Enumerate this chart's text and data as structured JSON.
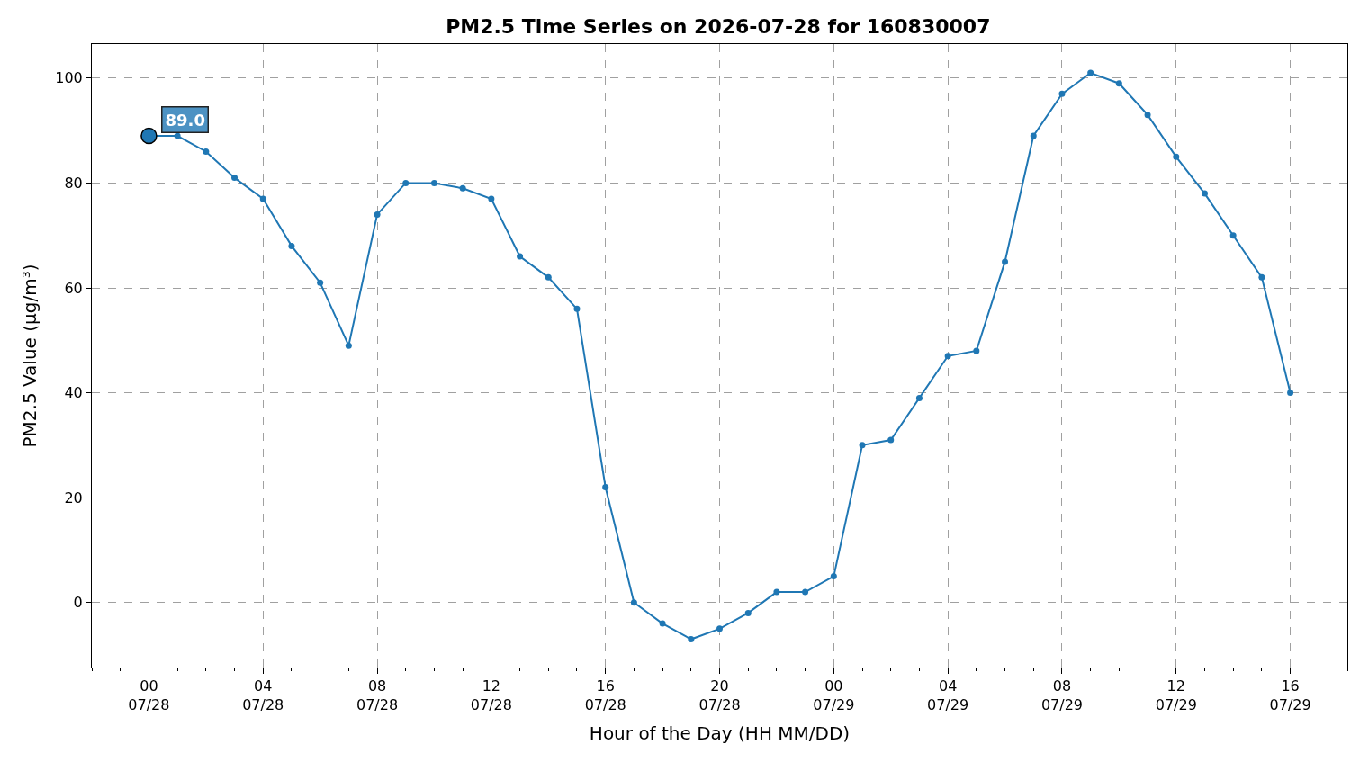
{
  "chart_data": {
    "type": "line",
    "title": "PM2.5 Time Series on 2026-07-28 for 160830007",
    "xlabel": "Hour of the Day (HH MM/DD)",
    "ylabel": "PM2.5 Value (µg/m³)",
    "x": [
      "2026-07-28T00:00",
      "2026-07-28T01:00",
      "2026-07-28T02:00",
      "2026-07-28T03:00",
      "2026-07-28T04:00",
      "2026-07-28T05:00",
      "2026-07-28T06:00",
      "2026-07-28T07:00",
      "2026-07-28T08:00",
      "2026-07-28T09:00",
      "2026-07-28T10:00",
      "2026-07-28T11:00",
      "2026-07-28T12:00",
      "2026-07-28T13:00",
      "2026-07-28T14:00",
      "2026-07-28T15:00",
      "2026-07-28T16:00",
      "2026-07-28T17:00",
      "2026-07-28T18:00",
      "2026-07-28T19:00",
      "2026-07-28T20:00",
      "2026-07-28T21:00",
      "2026-07-28T22:00",
      "2026-07-28T23:00",
      "2026-07-29T00:00",
      "2026-07-29T01:00",
      "2026-07-29T02:00",
      "2026-07-29T03:00",
      "2026-07-29T04:00",
      "2026-07-29T05:00",
      "2026-07-29T06:00",
      "2026-07-29T07:00",
      "2026-07-29T08:00",
      "2026-07-29T09:00",
      "2026-07-29T10:00",
      "2026-07-29T11:00",
      "2026-07-29T12:00",
      "2026-07-29T13:00",
      "2026-07-29T14:00",
      "2026-07-29T15:00",
      "2026-07-29T16:00"
    ],
    "series": [
      {
        "color": "#1f77b4",
        "values": [
          89,
          89,
          86,
          81,
          77,
          68,
          61,
          49,
          74,
          80,
          80,
          79,
          77,
          66,
          62,
          56,
          22,
          0,
          -4,
          -7,
          -5,
          -2,
          2,
          2,
          5,
          30,
          31,
          39,
          47,
          48,
          65,
          89,
          97,
          101,
          99,
          93,
          85,
          78,
          70,
          62,
          40
        ]
      },
      {
        "type": "scatter",
        "color": "#1f77b4",
        "x": [
          "2026-07-28T00:00"
        ],
        "values": [
          89
        ]
      }
    ],
    "annotations": [
      {
        "text": "89.0",
        "x": "2026-07-28T00:00",
        "y": 89
      }
    ],
    "xlim": [
      "2026-07-27T22:00",
      "2026-07-29T18:00"
    ],
    "xticks": [
      {
        "value": "2026-07-28T00:00",
        "label": "00\n07/28"
      },
      {
        "value": "2026-07-28T04:00",
        "label": "04\n07/28"
      },
      {
        "value": "2026-07-28T08:00",
        "label": "08\n07/28"
      },
      {
        "value": "2026-07-28T12:00",
        "label": "12\n07/28"
      },
      {
        "value": "2026-07-28T16:00",
        "label": "16\n07/28"
      },
      {
        "value": "2026-07-28T20:00",
        "label": "20\n07/28"
      },
      {
        "value": "2026-07-29T00:00",
        "label": "00\n07/29"
      },
      {
        "value": "2026-07-29T04:00",
        "label": "04\n07/29"
      },
      {
        "value": "2026-07-29T08:00",
        "label": "08\n07/29"
      },
      {
        "value": "2026-07-29T12:00",
        "label": "12\n07/29"
      },
      {
        "value": "2026-07-29T16:00",
        "label": "16\n07/29"
      }
    ],
    "ylim": [
      -12.4,
      106.5
    ],
    "yticks": [
      0,
      20,
      40,
      60,
      80,
      100
    ],
    "grid": true,
    "marker": "circle",
    "line_style": "solid"
  }
}
